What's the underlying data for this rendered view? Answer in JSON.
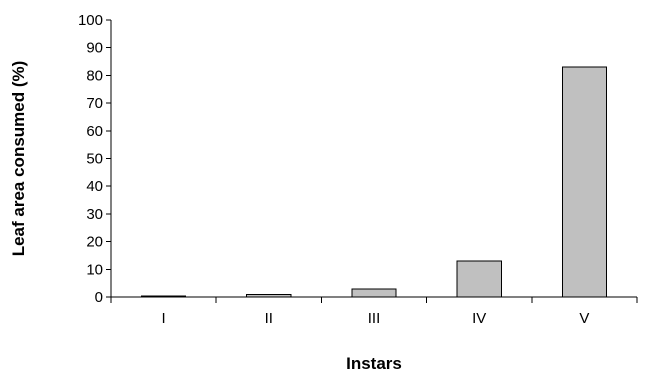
{
  "chart_data": {
    "type": "bar",
    "title": "",
    "xlabel": "Instars",
    "ylabel": "Leaf area consumed (%)",
    "categories": [
      "I",
      "II",
      "III",
      "IV",
      "V"
    ],
    "values": [
      0.4,
      0.9,
      2.9,
      13,
      83
    ],
    "ylim": [
      0,
      100
    ],
    "yticks": [
      0,
      10,
      20,
      30,
      40,
      50,
      60,
      70,
      80,
      90,
      100
    ],
    "grid": false,
    "legend": "none",
    "bar_color": "#c0c0c0",
    "edge_color": "#000000"
  }
}
